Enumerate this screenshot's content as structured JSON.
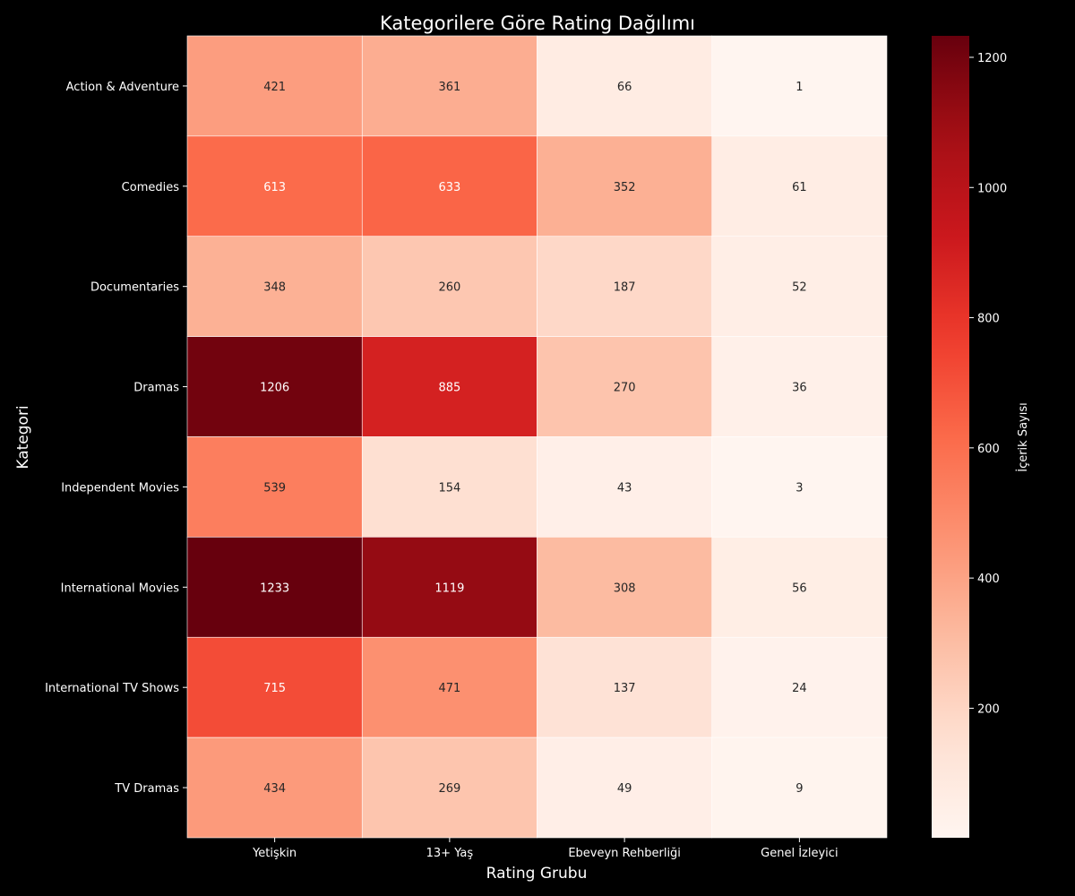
{
  "chart_data": {
    "type": "heatmap",
    "title": "Kategorilere Göre Rating Dağılımı",
    "xlabel": "Rating Grubu",
    "ylabel": "Kategori",
    "x_categories": [
      "Yetişkin",
      "13+ Yaş",
      "Ebeveyn Rehberliği",
      "Genel İzleyici"
    ],
    "y_categories": [
      "Action & Adventure",
      "Comedies",
      "Documentaries",
      "Dramas",
      "Independent Movies",
      "International Movies",
      "International TV Shows",
      "TV Dramas"
    ],
    "values": [
      [
        421,
        361,
        66,
        1
      ],
      [
        613,
        633,
        352,
        61
      ],
      [
        348,
        260,
        187,
        52
      ],
      [
        1206,
        885,
        270,
        36
      ],
      [
        539,
        154,
        43,
        3
      ],
      [
        1233,
        1119,
        308,
        56
      ],
      [
        715,
        471,
        137,
        24
      ],
      [
        434,
        269,
        49,
        9
      ]
    ],
    "colorbar": {
      "label": "İçerik Sayısı",
      "ticks": [
        200,
        400,
        600,
        800,
        1000,
        1200
      ],
      "vmin": 1,
      "vmax": 1233,
      "colormap": "Reds"
    },
    "colors": {
      "background": "#000000",
      "text": "#ffffff",
      "grid": "#ffffff"
    }
  }
}
